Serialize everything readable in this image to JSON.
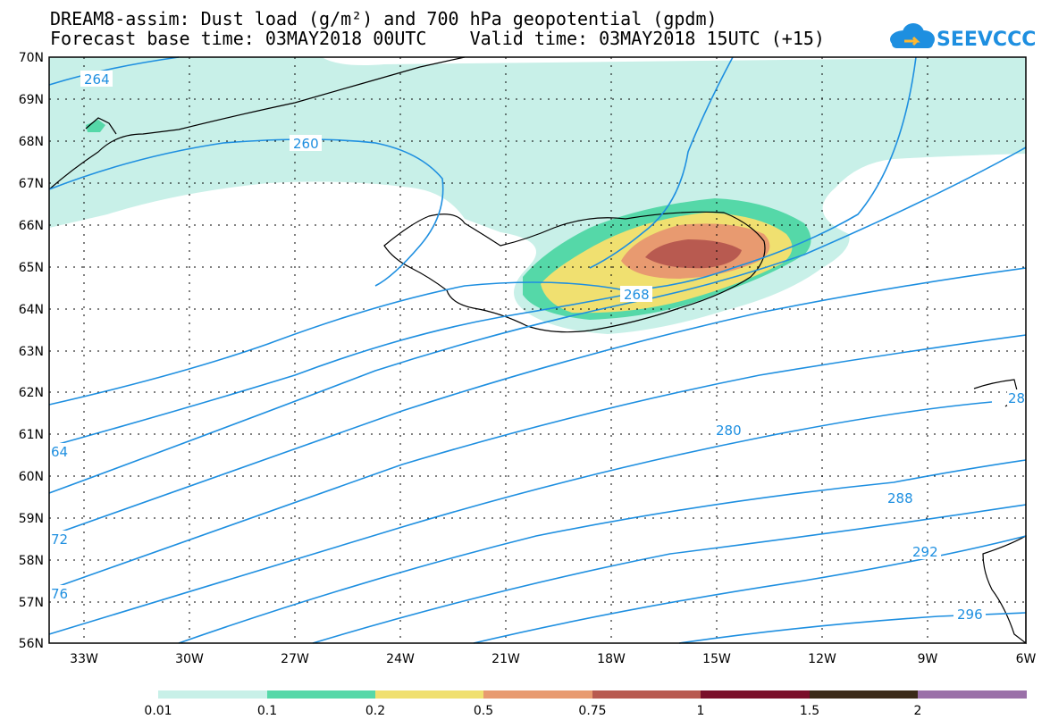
{
  "header": {
    "title_line1": "DREAM8-assim: Dust load (g/m²) and 700 hPa geopotential (gpdm)",
    "title_line2": "Forecast base time: 03MAY2018 00UTC    Valid time: 03MAY2018 15UTC (+15)",
    "logo_text": "SEEVCCC"
  },
  "map": {
    "lat_labels": [
      "70N",
      "69N",
      "68N",
      "67N",
      "66N",
      "65N",
      "64N",
      "63N",
      "62N",
      "61N",
      "60N",
      "59N",
      "58N",
      "57N",
      "56N"
    ],
    "lon_labels": [
      "33W",
      "30W",
      "27W",
      "24W",
      "21W",
      "18W",
      "15W",
      "12W",
      "9W",
      "6W"
    ],
    "contour_labels": [
      "264",
      "260",
      "268",
      "280",
      "288",
      "292",
      "296",
      "64",
      "72",
      "76",
      "28"
    ],
    "colors": {
      "dust_0_01": "#c8f0e8",
      "dust_0_1": "#55d8a8",
      "dust_0_2": "#f0e070",
      "dust_0_5": "#e89a70",
      "dust_0_75": "#b85a50",
      "dust_1": "#7a0f2a",
      "dust_1_5": "#3a2a18",
      "dust_2": "#9a70a8",
      "contour": "#1e8fe0"
    }
  },
  "colorbar": {
    "labels": [
      "0.01",
      "0.1",
      "0.2",
      "0.5",
      "0.75",
      "1",
      "1.5",
      "2"
    ],
    "colors": [
      "#c8f0e8",
      "#55d8a8",
      "#f0e070",
      "#e89a70",
      "#b85a50",
      "#7a0f2a",
      "#3a2a18",
      "#9a70a8"
    ]
  }
}
